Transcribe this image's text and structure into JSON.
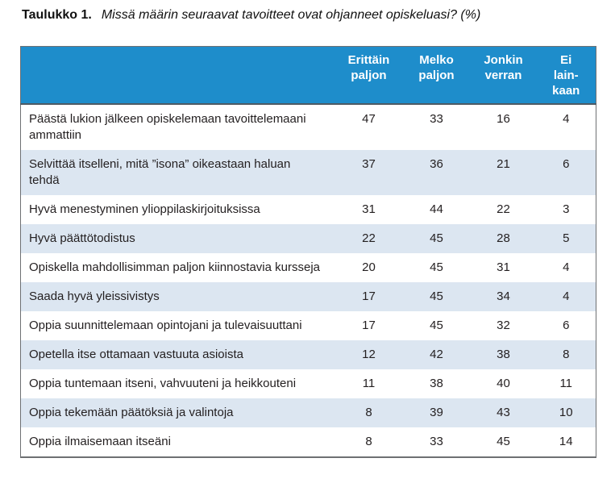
{
  "caption": {
    "label": "Taulukko 1.",
    "question": "Missä määrin seuraavat tavoitteet ovat ohjanneet opiskeluasi? (%)"
  },
  "table": {
    "columns": [
      "Erittäin\npaljon",
      "Melko\npaljon",
      "Jonkin\nverran",
      "Ei\nlain-\nkaan"
    ],
    "rows": [
      {
        "label": "Päästä lukion jälkeen opiskelemaan tavoittelemaani ammattiin",
        "values": [
          47,
          33,
          16,
          4
        ]
      },
      {
        "label": "Selvittää itselleni, mitä ”isona” oikeastaan haluan tehdä",
        "values": [
          37,
          36,
          21,
          6
        ]
      },
      {
        "label": "Hyvä menestyminen ylioppilaskirjoituksissa",
        "values": [
          31,
          44,
          22,
          3
        ]
      },
      {
        "label": "Hyvä päättötodistus",
        "values": [
          22,
          45,
          28,
          5
        ]
      },
      {
        "label": "Opiskella mahdollisimman paljon kiinnostavia kursseja",
        "values": [
          20,
          45,
          31,
          4
        ]
      },
      {
        "label": "Saada hyvä yleissivistys",
        "values": [
          17,
          45,
          34,
          4
        ]
      },
      {
        "label": "Oppia suunnittelemaan opintojani ja tulevaisuuttani",
        "values": [
          17,
          45,
          32,
          6
        ]
      },
      {
        "label": "Opetella itse ottamaan vastuuta asioista",
        "values": [
          12,
          42,
          38,
          8
        ]
      },
      {
        "label": "Oppia tuntemaan itseni, vahvuuteni ja heikkouteni",
        "values": [
          11,
          38,
          40,
          11
        ]
      },
      {
        "label": "Oppia tekemään päätöksiä ja valintoja",
        "values": [
          8,
          39,
          43,
          10
        ]
      },
      {
        "label": "Oppia ilmaisemaan itseäni",
        "values": [
          8,
          33,
          45,
          14
        ]
      }
    ]
  },
  "colors": {
    "header_bg": "#1e8dcb",
    "header_text": "#ffffff",
    "alt_row_bg": "#dce6f1",
    "row_bg": "#ffffff",
    "table_border": "#6e7073",
    "header_bottom_border": "#4e5a64",
    "body_text": "#231f20"
  }
}
